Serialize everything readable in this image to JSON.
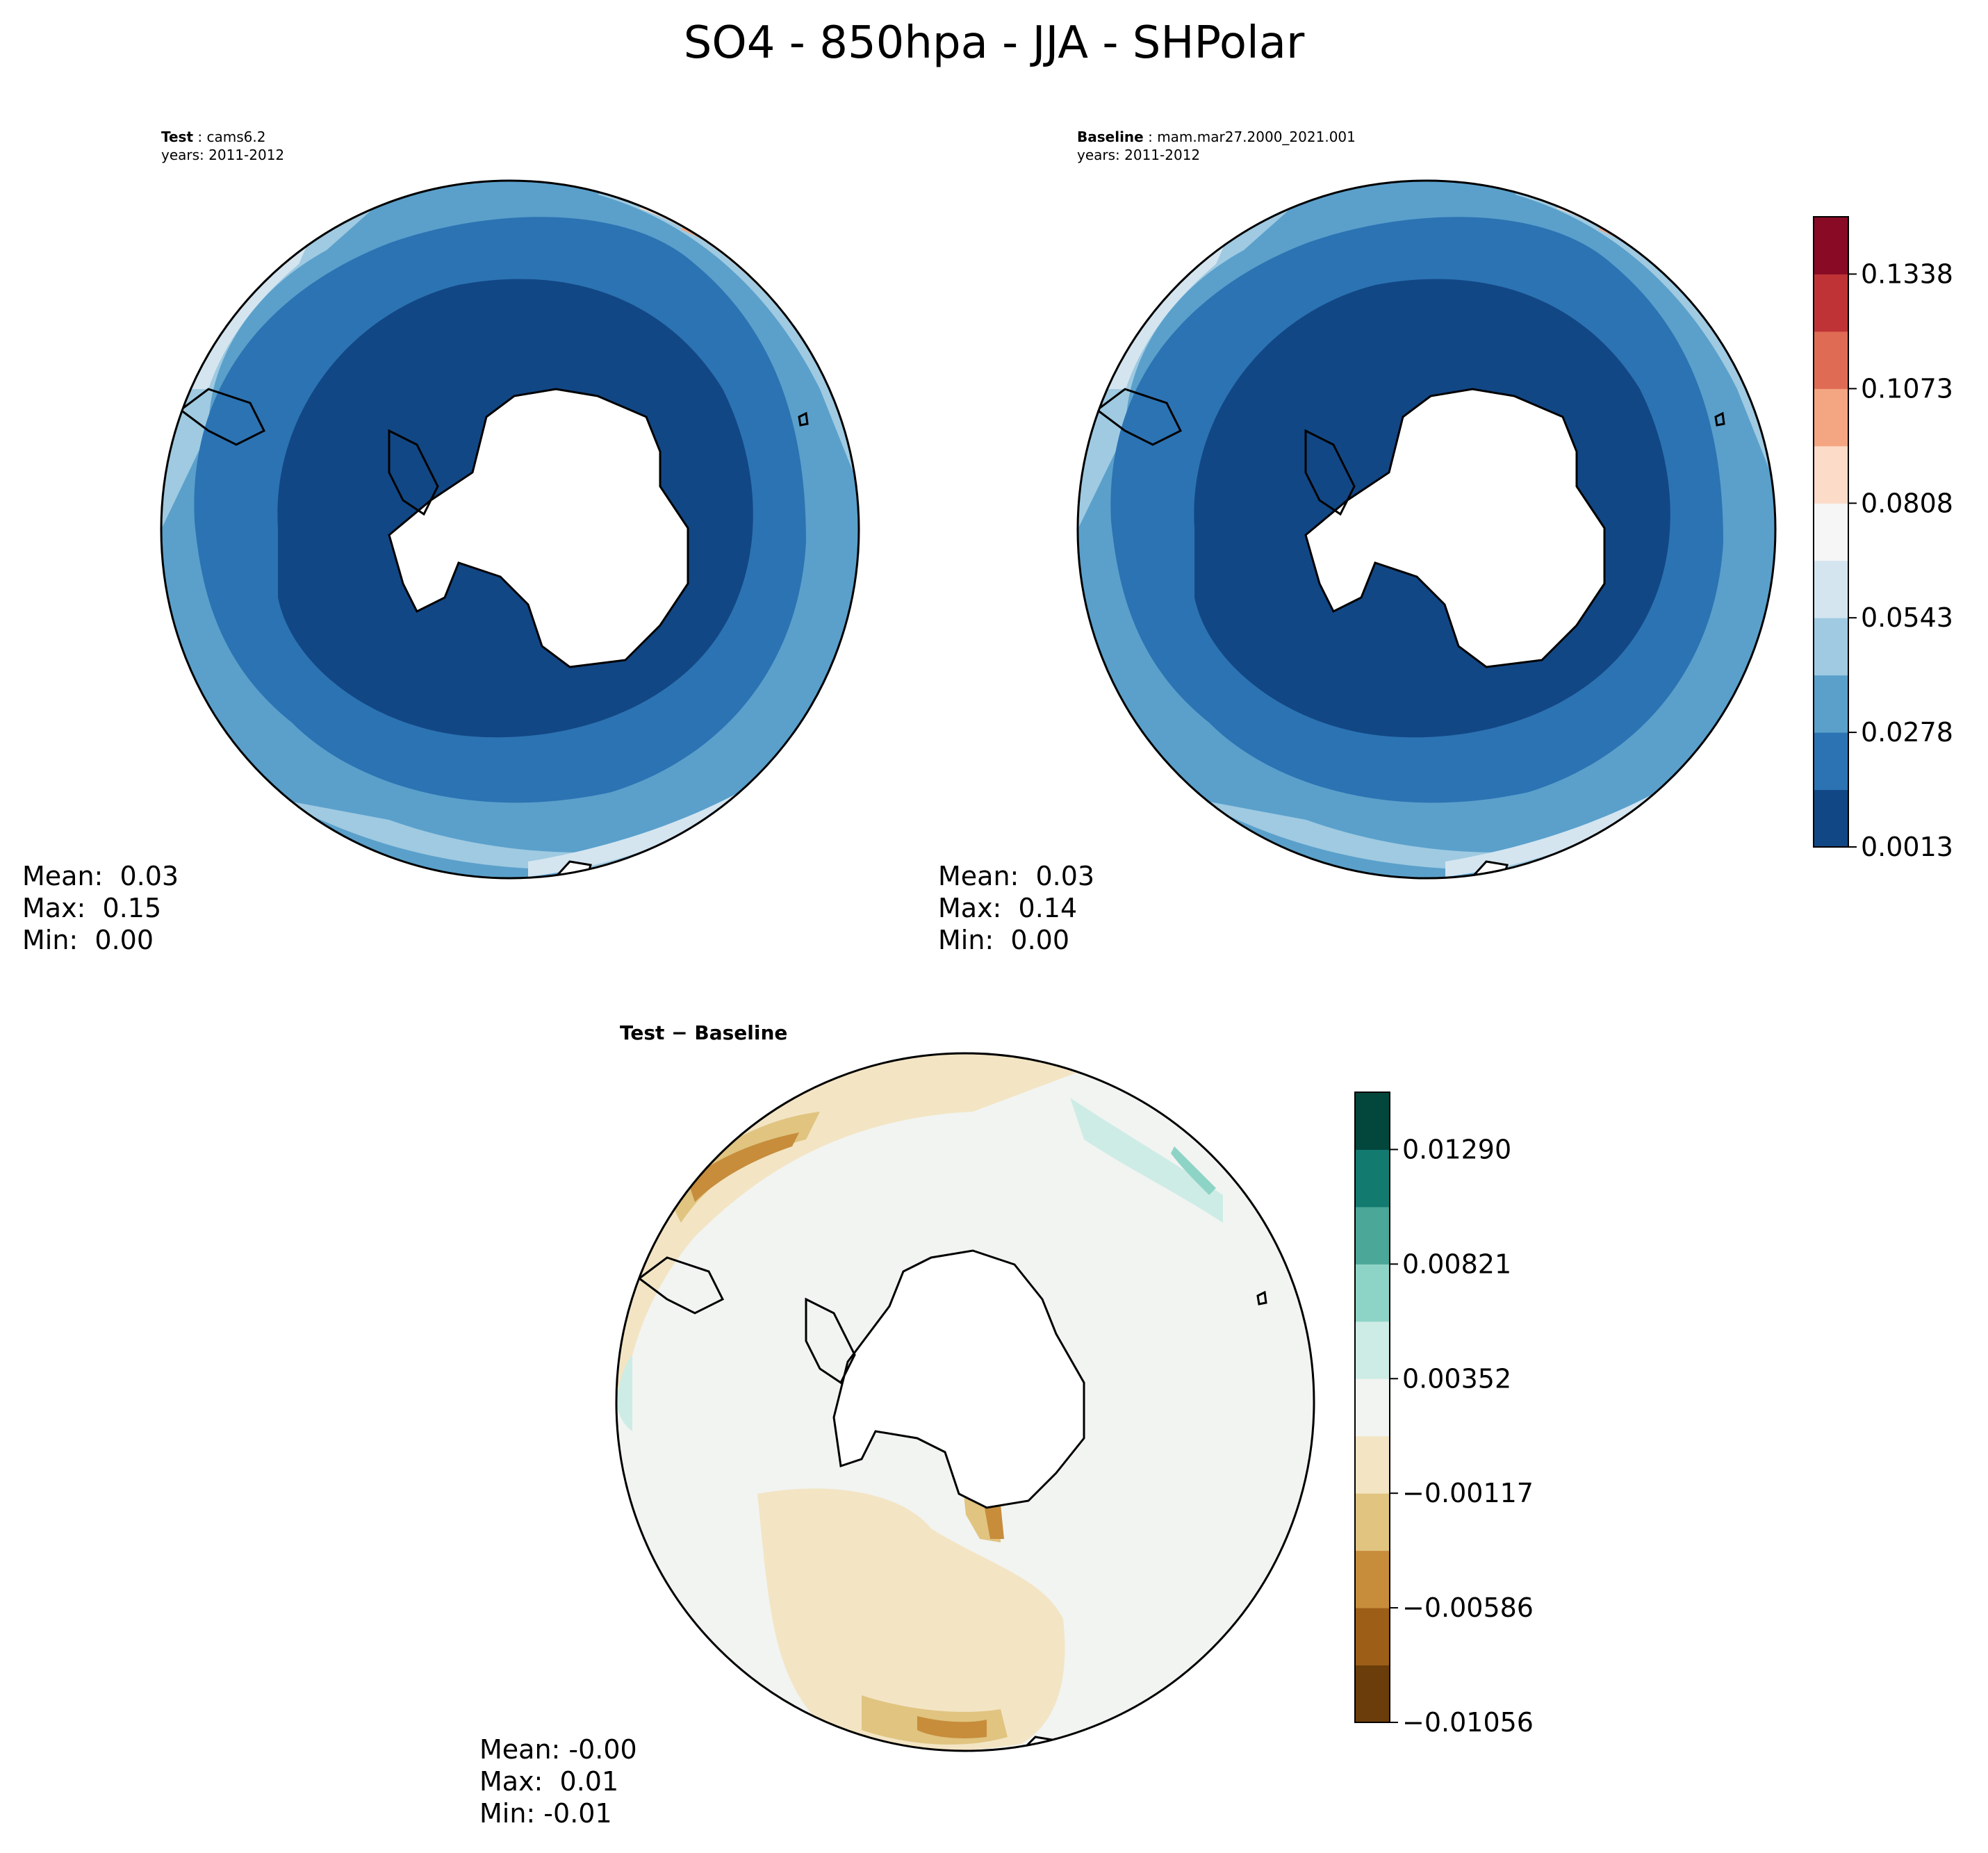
{
  "title": "SO4 - 850hpa - JJA - SHPolar",
  "panels": {
    "test": {
      "label_bold": "Test",
      "label_name": "cams6.2",
      "years": "years: 2011-2012",
      "stats": {
        "mean": "Mean:  0.03",
        "max": "Max:  0.15",
        "min": "Min:  0.00"
      }
    },
    "baseline": {
      "label_bold": "Baseline",
      "label_name": "mam.mar27.2000_2021.001",
      "years": "years: 2011-2012",
      "stats": {
        "mean": "Mean:  0.03",
        "max": "Max:  0.14",
        "min": "Min:  0.00"
      }
    },
    "diff": {
      "title": "Test − Baseline",
      "stats": {
        "mean": "Mean: -0.00",
        "max": "Max:  0.01",
        "min": "Min: -0.01"
      }
    }
  },
  "colorbars": {
    "main": {
      "colors": [
        "#124785",
        "#2c73b3",
        "#5aa0cb",
        "#9fcae1",
        "#d4e5f0",
        "#f7f6f6",
        "#fcdbc8",
        "#f4a582",
        "#df6b54",
        "#bf3336",
        "#880a25"
      ],
      "tick_labels": [
        "0.0013",
        "0.0278",
        "0.0543",
        "0.0808",
        "0.1073",
        "0.1338"
      ]
    },
    "diff": {
      "colors": [
        "#6a3d0a",
        "#9d5f18",
        "#c78d3b",
        "#e0c480",
        "#f3e5c4",
        "#f2f4f2",
        "#cdece5",
        "#8ed4c6",
        "#4ba797",
        "#137a70",
        "#03463c"
      ],
      "tick_labels": [
        "−0.01056",
        "−0.00586",
        "−0.00117",
        "0.00352",
        "0.00821",
        "0.01290"
      ]
    }
  },
  "chart_data": [
    {
      "type": "heatmap",
      "panel": "test",
      "projection": "south polar stereographic",
      "region": "SHPolar",
      "mean": 0.03,
      "max": 0.15,
      "min": 0.0,
      "levels": [
        0.0013,
        0.0278,
        0.0543,
        0.0808,
        0.1073,
        0.1338
      ],
      "colormap": "RdBu_r"
    },
    {
      "type": "heatmap",
      "panel": "baseline",
      "projection": "south polar stereographic",
      "region": "SHPolar",
      "mean": 0.03,
      "max": 0.14,
      "min": 0.0,
      "levels": [
        0.0013,
        0.0278,
        0.0543,
        0.0808,
        0.1073,
        0.1338
      ],
      "colormap": "RdBu_r"
    },
    {
      "type": "heatmap",
      "panel": "diff",
      "projection": "south polar stereographic",
      "region": "SHPolar",
      "mean": -0.0,
      "max": 0.01,
      "min": -0.01,
      "levels": [
        -0.01056,
        -0.00586,
        -0.00117,
        0.00352,
        0.00821,
        0.0129
      ],
      "colormap": "BrBG"
    }
  ]
}
